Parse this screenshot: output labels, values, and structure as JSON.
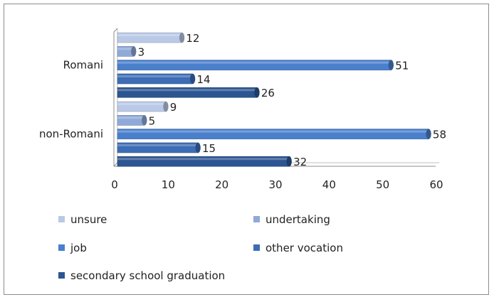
{
  "chart_data": {
    "type": "bar",
    "orientation": "horizontal",
    "categories": [
      "Romani",
      "non-Romani"
    ],
    "series": [
      {
        "name": "unsure",
        "values": [
          12,
          9
        ],
        "color": "#b9c9e6"
      },
      {
        "name": "undertaking",
        "values": [
          3,
          5
        ],
        "color": "#8fa9d8"
      },
      {
        "name": "job",
        "values": [
          51,
          58
        ],
        "color": "#4a7fcc"
      },
      {
        "name": "other vocation",
        "values": [
          14,
          15
        ],
        "color": "#3d6db5"
      },
      {
        "name": "secondary school graduation",
        "values": [
          26,
          32
        ],
        "color": "#2c5591"
      }
    ],
    "xticks": [
      "0",
      "10",
      "20",
      "30",
      "40",
      "50",
      "60"
    ],
    "xlim": [
      0,
      60
    ],
    "grid": false,
    "legend_position": "bottom",
    "title": "",
    "xlabel": "",
    "ylabel": ""
  }
}
